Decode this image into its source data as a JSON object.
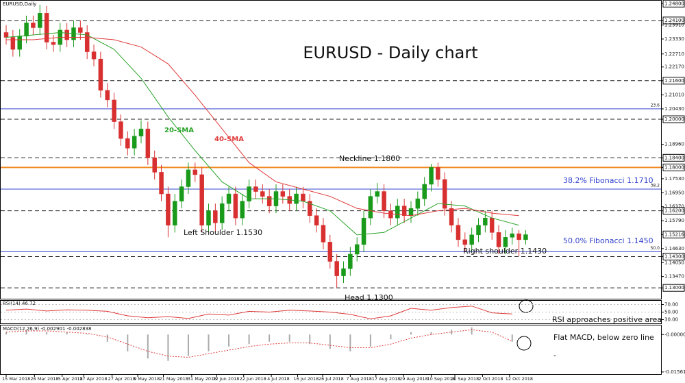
{
  "chart_data": [
    {
      "type": "candlestick",
      "title": "EURUSD - Daily chart",
      "symbol_label": "EURUSD,Daily",
      "open": [
        1.236,
        1.234,
        1.229,
        1.2345,
        1.24,
        1.238,
        1.244,
        1.232,
        1.231,
        1.237,
        1.233,
        1.238,
        1.236,
        1.228,
        1.225,
        1.212,
        1.208,
        1.199,
        1.192,
        1.188,
        1.193,
        1.196,
        1.184,
        1.178,
        1.169,
        1.156,
        1.166,
        1.172,
        1.179,
        1.177,
        1.156,
        1.162,
        1.157,
        1.165,
        1.169,
        1.159,
        1.166,
        1.172,
        1.17,
        1.168,
        1.164,
        1.17,
        1.168,
        1.165,
        1.169,
        1.166,
        1.16,
        1.156,
        1.149,
        1.141,
        1.135,
        1.138,
        1.144,
        1.148,
        1.159,
        1.168,
        1.17,
        1.162,
        1.159,
        1.164,
        1.16,
        1.163,
        1.167,
        1.173,
        1.18,
        1.175,
        1.163,
        1.156,
        1.15,
        1.148,
        1.152,
        1.156,
        1.159,
        1.153,
        1.147,
        1.151,
        1.1525,
        1.15
      ],
      "high": [
        1.239,
        1.237,
        1.2375,
        1.243,
        1.243,
        1.2475,
        1.247,
        1.235,
        1.24,
        1.24,
        1.241,
        1.241,
        1.239,
        1.231,
        1.228,
        1.215,
        1.211,
        1.202,
        1.195,
        1.196,
        1.1995,
        1.199,
        1.187,
        1.181,
        1.172,
        1.169,
        1.175,
        1.182,
        1.182,
        1.18,
        1.165,
        1.165,
        1.168,
        1.172,
        1.172,
        1.169,
        1.175,
        1.175,
        1.173,
        1.171,
        1.173,
        1.173,
        1.171,
        1.172,
        1.172,
        1.169,
        1.163,
        1.159,
        1.152,
        1.144,
        1.141,
        1.147,
        1.151,
        1.162,
        1.171,
        1.1735,
        1.173,
        1.165,
        1.167,
        1.167,
        1.166,
        1.17,
        1.176,
        1.1815,
        1.182,
        1.178,
        1.166,
        1.159,
        1.153,
        1.155,
        1.159,
        1.162,
        1.162,
        1.156,
        1.154,
        1.155,
        1.154,
        1.154
      ],
      "low": [
        1.231,
        1.226,
        1.226,
        1.2315,
        1.235,
        1.235,
        1.229,
        1.228,
        1.228,
        1.23,
        1.23,
        1.233,
        1.225,
        1.222,
        1.209,
        1.205,
        1.196,
        1.189,
        1.185,
        1.185,
        1.19,
        1.181,
        1.175,
        1.166,
        1.151,
        1.153,
        1.163,
        1.169,
        1.174,
        1.153,
        1.153,
        1.153,
        1.154,
        1.162,
        1.156,
        1.156,
        1.163,
        1.167,
        1.165,
        1.161,
        1.161,
        1.165,
        1.162,
        1.162,
        1.163,
        1.157,
        1.153,
        1.146,
        1.138,
        1.1301,
        1.132,
        1.135,
        1.141,
        1.145,
        1.156,
        1.165,
        1.159,
        1.156,
        1.156,
        1.157,
        1.157,
        1.16,
        1.164,
        1.17,
        1.172,
        1.16,
        1.153,
        1.147,
        1.145,
        1.145,
        1.149,
        1.153,
        1.15,
        1.144,
        1.144,
        1.148,
        1.1432,
        1.148
      ],
      "close": [
        1.234,
        1.229,
        1.2345,
        1.24,
        1.238,
        1.244,
        1.232,
        1.231,
        1.237,
        1.233,
        1.238,
        1.236,
        1.228,
        1.225,
        1.212,
        1.208,
        1.199,
        1.192,
        1.188,
        1.193,
        1.196,
        1.184,
        1.178,
        1.169,
        1.156,
        1.166,
        1.172,
        1.179,
        1.177,
        1.156,
        1.162,
        1.157,
        1.165,
        1.169,
        1.159,
        1.166,
        1.172,
        1.17,
        1.168,
        1.164,
        1.17,
        1.168,
        1.165,
        1.169,
        1.166,
        1.16,
        1.156,
        1.149,
        1.141,
        1.135,
        1.138,
        1.144,
        1.148,
        1.159,
        1.168,
        1.17,
        1.162,
        1.159,
        1.164,
        1.16,
        1.163,
        1.167,
        1.173,
        1.18,
        1.175,
        1.163,
        1.156,
        1.15,
        1.148,
        1.152,
        1.156,
        1.159,
        1.153,
        1.147,
        1.151,
        1.1525,
        1.15,
        1.1521
      ],
      "up_color": "#1a9a1a",
      "down_color": "#d83030",
      "ylim": [
        1.1255,
        1.2495
      ],
      "yticks": [
        {
          "value": 1.248,
          "label": "1.24800",
          "boxed": true
        },
        {
          "value": 1.241,
          "label": "1.24100",
          "boxed": true
        },
        {
          "value": 1.2391,
          "label": "1.23910"
        },
        {
          "value": 1.2333,
          "label": "1.23330"
        },
        {
          "value": 1.2271,
          "label": "1.22710"
        },
        {
          "value": 1.2217,
          "label": "1.22170"
        },
        {
          "value": 1.216,
          "label": "1.21600",
          "boxed": true
        },
        {
          "value": 1.2101,
          "label": "1.21010"
        },
        {
          "value": 1.2043,
          "label": "1.20430"
        },
        {
          "value": 1.2,
          "label": "1.20000",
          "boxed": true
        },
        {
          "value": 1.1896,
          "label": "1.18960"
        },
        {
          "value": 1.184,
          "label": "1.18400",
          "boxed": true
        },
        {
          "value": 1.18,
          "label": "1.18000",
          "boxed": true
        },
        {
          "value": 1.1753,
          "label": "1.17530"
        },
        {
          "value": 1.1695,
          "label": "1.16950"
        },
        {
          "value": 1.1637,
          "label": "1.16370"
        },
        {
          "value": 1.162,
          "label": "1.16200",
          "boxed": true
        },
        {
          "value": 1.1579,
          "label": "1.15790"
        },
        {
          "value": 1.15216,
          "label": "1.15216",
          "boxed": true
        },
        {
          "value": 1.1463,
          "label": "1.14630"
        },
        {
          "value": 1.143,
          "label": "1.14300",
          "boxed": true
        },
        {
          "value": 1.1405,
          "label": "1.14050"
        },
        {
          "value": 1.1347,
          "label": "1.13470"
        },
        {
          "value": 1.13,
          "label": "1.13000",
          "boxed": true
        }
      ],
      "xticks": [
        {
          "value": 0,
          "label": "15 Mar 2018"
        },
        {
          "value": 4.2,
          "label": "26 Mar 2018"
        },
        {
          "value": 8.3,
          "label": "5 Apr 2018"
        },
        {
          "value": 11.5,
          "label": "17 Apr 2018"
        },
        {
          "value": 15.7,
          "label": "27 Apr 2018"
        },
        {
          "value": 19.5,
          "label": "9 May 2018"
        },
        {
          "value": 23.3,
          "label": "21 May 2018"
        },
        {
          "value": 27.5,
          "label": "31 May 2018"
        },
        {
          "value": 31.2,
          "label": "12 Jun 2018"
        },
        {
          "value": 35.2,
          "label": "22 Jun 2018"
        },
        {
          "value": 39.3,
          "label": "4 Jul 2018"
        },
        {
          "value": 43.2,
          "label": "16 Jul 2018"
        },
        {
          "value": 46.9,
          "label": "26 Jul 2018"
        },
        {
          "value": 51,
          "label": "7 Aug 2018"
        },
        {
          "value": 54.8,
          "label": "17 Aug 2018"
        },
        {
          "value": 58.9,
          "label": "29 Aug 2018"
        },
        {
          "value": 63,
          "label": "10 Sep 2018"
        },
        {
          "value": 66.5,
          "label": "20 Sep 2018"
        },
        {
          "value": 70.6,
          "label": "2 Oct 2018"
        },
        {
          "value": 74.6,
          "label": "12 Oct 2018"
        }
      ],
      "levels": [
        1.241,
        1.216,
        1.2,
        1.184,
        1.162,
        1.143,
        1.13
      ],
      "neckline": {
        "value": 1.18,
        "color": "#f08a24"
      },
      "fib_levels": [
        {
          "value": 1.2043,
          "label": "23.6"
        },
        {
          "value": 1.171,
          "label": "38.2"
        },
        {
          "value": 1.145,
          "label": "50.0"
        }
      ],
      "fib_color": "#3344cc",
      "series": [
        {
          "name": "20-SMA",
          "color": "#2aa32a",
          "x": [
            0,
            4,
            8,
            12,
            16,
            20,
            24,
            28,
            32,
            36,
            40,
            44,
            48,
            52,
            56,
            60,
            64,
            68,
            72,
            76
          ],
          "values": [
            1.234,
            1.235,
            1.236,
            1.235,
            1.229,
            1.217,
            1.201,
            1.187,
            1.174,
            1.167,
            1.167,
            1.166,
            1.162,
            1.152,
            1.153,
            1.159,
            1.165,
            1.164,
            1.159,
            1.156
          ]
        },
        {
          "name": "40-SMA",
          "color": "#e03a3a",
          "x": [
            0,
            4,
            8,
            12,
            16,
            20,
            24,
            28,
            32,
            36,
            40,
            44,
            48,
            52,
            56,
            60,
            64,
            68,
            72,
            76
          ],
          "values": [
            1.233,
            1.233,
            1.234,
            1.234,
            1.233,
            1.23,
            1.223,
            1.21,
            1.196,
            1.182,
            1.174,
            1.171,
            1.168,
            1.163,
            1.161,
            1.16,
            1.162,
            1.163,
            1.161,
            1.16
          ]
        }
      ],
      "annotations": [
        "Neckline 1.1800",
        "38.2% Fibonacci 1.1710",
        "50.0% Fibonacci 1.1450",
        "Left Shoulder 1.1530",
        "Head 1.1300",
        "Right shoulder 1.1430"
      ]
    },
    {
      "type": "line",
      "title": "RSI(14) 46.72",
      "color": "#e03a3a",
      "x": [
        0,
        3,
        6,
        9,
        12,
        15,
        18,
        21,
        24,
        27,
        30,
        33,
        36,
        39,
        42,
        45,
        48,
        51,
        54,
        57,
        60,
        63,
        66,
        69,
        72,
        75
      ],
      "values": [
        55,
        58,
        53,
        56,
        55,
        52,
        40,
        35,
        38,
        33,
        45,
        42,
        52,
        50,
        55,
        53,
        50,
        44,
        32,
        40,
        60,
        55,
        62,
        66,
        48,
        45
      ],
      "ylim": [
        20,
        80
      ],
      "yticks": [
        {
          "value": 70,
          "label": "70.00"
        },
        {
          "value": 50,
          "label": "50.00"
        },
        {
          "value": 30,
          "label": "30.00"
        }
      ],
      "annotation": "RSI approaches positive area"
    },
    {
      "type": "macd",
      "title": "MACD(12,26,9) -0.002901 -0.002838",
      "color": "#e03a3a",
      "bar_color": "#aaaaaa",
      "x": [
        0,
        3,
        6,
        9,
        12,
        15,
        18,
        21,
        24,
        27,
        30,
        33,
        36,
        39,
        42,
        45,
        48,
        51,
        54,
        57,
        60,
        63,
        66,
        69,
        72,
        75
      ],
      "histogram": [
        0.001,
        0.002,
        0.001,
        0.001,
        0,
        -0.003,
        -0.007,
        -0.01,
        -0.011,
        -0.009,
        -0.007,
        -0.005,
        -0.004,
        -0.003,
        -0.003,
        -0.004,
        -0.006,
        -0.007,
        -0.005,
        -0.002,
        0.001,
        0.001,
        0.002,
        0.003,
        0,
        -0.003
      ],
      "signal": [
        0.001,
        0.0015,
        0.0015,
        0.001,
        0.0005,
        -0.001,
        -0.004,
        -0.007,
        -0.009,
        -0.0095,
        -0.008,
        -0.0065,
        -0.005,
        -0.004,
        -0.0035,
        -0.0035,
        -0.0045,
        -0.0055,
        -0.0055,
        -0.004,
        -0.0015,
        0,
        0.001,
        0.002,
        0.001,
        -0.0028
      ],
      "ylim": [
        -0.0165,
        0.0035
      ],
      "yticks": [
        {
          "value": 0,
          "label": "-0.000000"
        },
        -0.015618
      ],
      "annotation": "Flat MACD, below zero line",
      "note": "-"
    }
  ]
}
